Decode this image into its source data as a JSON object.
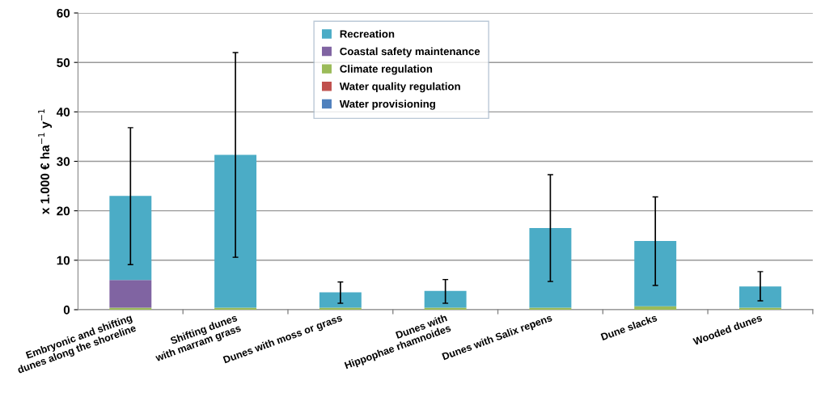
{
  "chart_data": {
    "type": "bar",
    "stacked": true,
    "ylabel": "x 1.000 € ha$^{−1}$ y$^{−1}$",
    "categories": [
      "Embryonic and shifting\ndunes along the shoreline",
      "Shifting dunes\nwith marram grass",
      "Dunes with moss or grass",
      "Dunes with\nHippophae rhamnoides",
      "Dunes with Salix repens",
      "Dune slacks",
      "Wooded dunes"
    ],
    "series": [
      {
        "name": "Water provisioning",
        "color": "#4f81bd",
        "values": [
          0,
          0,
          0,
          0,
          0,
          0,
          0
        ]
      },
      {
        "name": "Water quality regulation",
        "color": "#c0504d",
        "values": [
          0,
          0,
          0,
          0,
          0,
          0,
          0
        ]
      },
      {
        "name": "Climate regulation",
        "color": "#9bbb59",
        "values": [
          0.4,
          0.4,
          0.4,
          0.4,
          0.4,
          0.7,
          0.4
        ]
      },
      {
        "name": "Coastal safety maintenance",
        "color": "#8064a2",
        "values": [
          5.6,
          0,
          0,
          0,
          0,
          0,
          0
        ]
      },
      {
        "name": "Recreation",
        "color": "#4bacc6",
        "values": [
          17.0,
          30.9,
          3.1,
          3.4,
          16.1,
          13.2,
          4.3
        ],
        "errors": [
          [
            9.1,
            36.8
          ],
          [
            10.6,
            52.0
          ],
          [
            1.3,
            5.6
          ],
          [
            1.3,
            6.1
          ],
          [
            5.7,
            27.3
          ],
          [
            4.9,
            22.8
          ],
          [
            1.8,
            7.7
          ]
        ]
      }
    ],
    "ylim": [
      0,
      60
    ],
    "yticks": [
      0,
      10,
      20,
      30,
      40,
      50,
      60
    ],
    "grid": "y",
    "legend": "top"
  }
}
